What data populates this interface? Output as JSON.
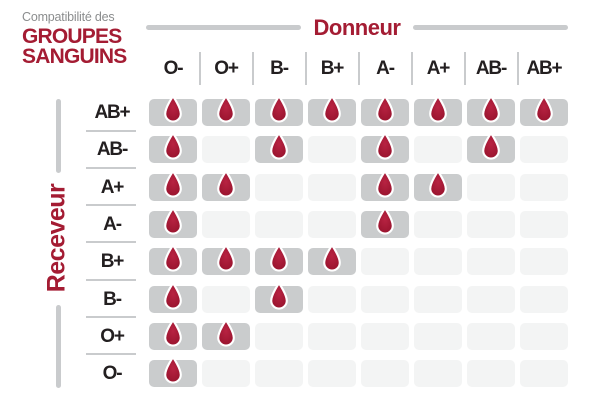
{
  "title": {
    "subtitle": "Compatibilité des",
    "line1": "GROUPES",
    "line2": "SANGUINS"
  },
  "axes": {
    "donor_label": "Donneur",
    "receiver_label": "Receveur"
  },
  "icons": {
    "compatible_marker": "blood-drop-icon"
  },
  "chart_data": {
    "type": "heatmap",
    "title": "Compatibilité des GROUPES SANGUINS",
    "x_axis_label": "Donneur",
    "y_axis_label": "Receveur",
    "columns": [
      "O-",
      "O+",
      "B-",
      "B+",
      "A-",
      "A+",
      "AB-",
      "AB+"
    ],
    "rows": [
      "AB+",
      "AB-",
      "A+",
      "A-",
      "B+",
      "B-",
      "O+",
      "O-"
    ],
    "matrix": [
      [
        1,
        1,
        1,
        1,
        1,
        1,
        1,
        1
      ],
      [
        1,
        0,
        1,
        0,
        1,
        0,
        1,
        0
      ],
      [
        1,
        1,
        0,
        0,
        1,
        1,
        0,
        0
      ],
      [
        1,
        0,
        0,
        0,
        1,
        0,
        0,
        0
      ],
      [
        1,
        1,
        1,
        1,
        0,
        0,
        0,
        0
      ],
      [
        1,
        0,
        1,
        0,
        0,
        0,
        0,
        0
      ],
      [
        1,
        1,
        0,
        0,
        0,
        0,
        0,
        0
      ],
      [
        1,
        0,
        0,
        0,
        0,
        0,
        0,
        0
      ]
    ]
  },
  "colors": {
    "red": "#a41c33",
    "dark": "#231f20",
    "gray": "#c9cbcd",
    "cellOn": "#cacccd",
    "cellOff": "#f3f4f4",
    "subtitle": "#8b8d8e",
    "dropDark": "#96122c",
    "dropLight": "#b82342"
  }
}
